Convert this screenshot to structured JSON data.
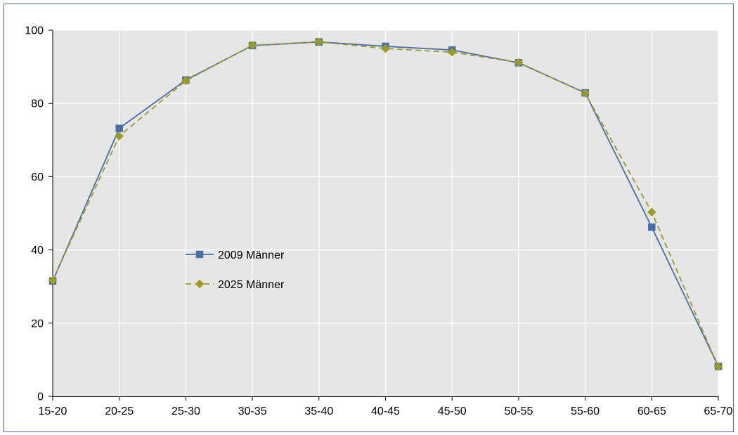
{
  "chart_data": {
    "type": "line",
    "title": "",
    "xlabel": "",
    "ylabel": "",
    "categories": [
      "15-20",
      "20-25",
      "25-30",
      "30-35",
      "35-40",
      "40-45",
      "45-50",
      "50-55",
      "55-60",
      "60-65",
      "65-70"
    ],
    "ylim": [
      0,
      100
    ],
    "yticks": [
      0,
      20,
      40,
      60,
      80,
      100
    ],
    "grid": true,
    "legend_placement": "center-left",
    "series": [
      {
        "name": "2009 Männer",
        "values": [
          31.5,
          73.2,
          86.4,
          95.8,
          96.8,
          95.6,
          94.6,
          91.1,
          82.9,
          46.2,
          8.2
        ],
        "color": "#4a6ea8",
        "marker": "square",
        "line_style": "solid"
      },
      {
        "name": "2025 Männer",
        "values": [
          31.7,
          71.1,
          86.2,
          95.9,
          96.8,
          95.0,
          94.0,
          91.2,
          82.8,
          50.3,
          8.1
        ],
        "color": "#9c9c24",
        "marker": "diamond",
        "line_style": "dashed"
      }
    ],
    "plot_background": "#e6e6e6",
    "grid_color": "#ffffff"
  }
}
